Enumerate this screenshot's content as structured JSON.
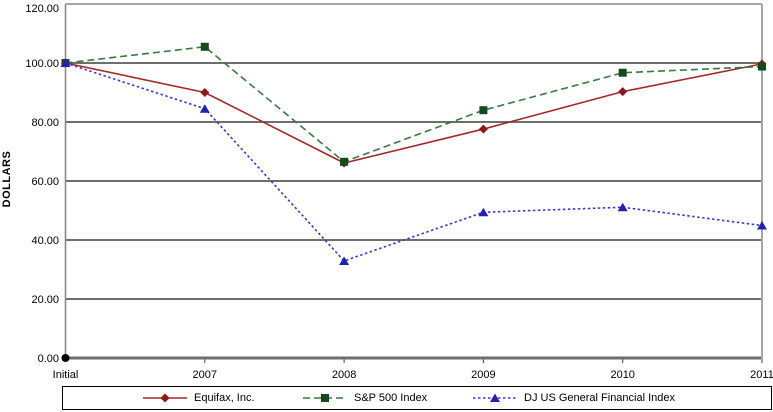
{
  "chart_data": {
    "type": "line",
    "title": "",
    "xlabel": "",
    "ylabel": "DOLLARS",
    "categories": [
      "Initial",
      "2007",
      "2008",
      "2009",
      "2010",
      "2011"
    ],
    "y_ticks": [
      "0.00",
      "20.00",
      "40.00",
      "60.00",
      "80.00",
      "100.00",
      "120.00"
    ],
    "ylim": [
      0,
      120
    ],
    "y_tick_step": 20,
    "grid": "horizontal",
    "legend_position": "bottom",
    "series": [
      {
        "name": "Equifax, Inc.",
        "line_color": "#A1292C",
        "marker_color": "#8C181B",
        "marker": "diamond",
        "line_style": "solid",
        "values": [
          100.0,
          90.0,
          66.1,
          77.6,
          90.3,
          99.7
        ]
      },
      {
        "name": "S&P 500 Index",
        "line_color": "#3A7A42",
        "marker_color": "#16491D",
        "marker": "square",
        "line_style": "dashed",
        "values": [
          100.0,
          105.5,
          66.5,
          84.0,
          96.7,
          98.8
        ]
      },
      {
        "name": "DJ US General Financial Index",
        "line_color": "#3A3AC8",
        "marker_color": "#2022AB",
        "marker": "triangle",
        "line_style": "dotted",
        "values": [
          100.0,
          84.5,
          32.9,
          49.4,
          51.1,
          44.9
        ]
      }
    ],
    "origin_marker": {
      "category": "Initial",
      "value": 0,
      "color": "#000000"
    }
  }
}
